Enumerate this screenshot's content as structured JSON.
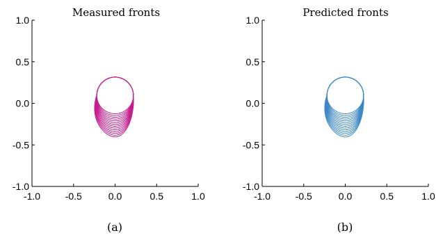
{
  "colors": {
    "measured": "#c41e8f",
    "predicted": "#3e88c4",
    "axis": "#000000"
  },
  "chart_data": [
    {
      "type": "line",
      "title": "Measured fronts",
      "caption": "(a)",
      "xlabel": "",
      "ylabel": "",
      "xlim": [
        -1.0,
        1.0
      ],
      "ylim": [
        -1.0,
        1.0
      ],
      "xticks": [
        "-1.0",
        "-0.5",
        "0.0",
        "0.5",
        "1.0"
      ],
      "yticks": [
        "-1.0",
        "-0.5",
        "0.0",
        "0.5",
        "1.0"
      ],
      "grid": false,
      "color": "#c41e8f",
      "fronts": {
        "count": 14,
        "center": [
          0.0,
          0.095
        ],
        "radius": 0.22,
        "max_shift": 0.28,
        "description": "nested closed fronts: circle of radius ~0.22 centered near (0, 0.1) at top, successive fronts extend downward to about y = -0.35"
      }
    },
    {
      "type": "line",
      "title": "Predicted fronts",
      "caption": "(b)",
      "xlabel": "",
      "ylabel": "",
      "xlim": [
        -1.0,
        1.0
      ],
      "ylim": [
        -1.0,
        1.0
      ],
      "xticks": [
        "-1.0",
        "-0.5",
        "0.0",
        "0.5",
        "1.0"
      ],
      "yticks": [
        "-1.0",
        "-0.5",
        "0.0",
        "0.5",
        "1.0"
      ],
      "grid": false,
      "color": "#3e88c4",
      "fronts": {
        "count": 14,
        "center": [
          0.0,
          0.095
        ],
        "radius": 0.22,
        "max_shift": 0.28,
        "description": "nested closed fronts: circle of radius ~0.22 centered near (0, 0.1) at top, successive fronts extend downward to about y = -0.35"
      }
    }
  ]
}
